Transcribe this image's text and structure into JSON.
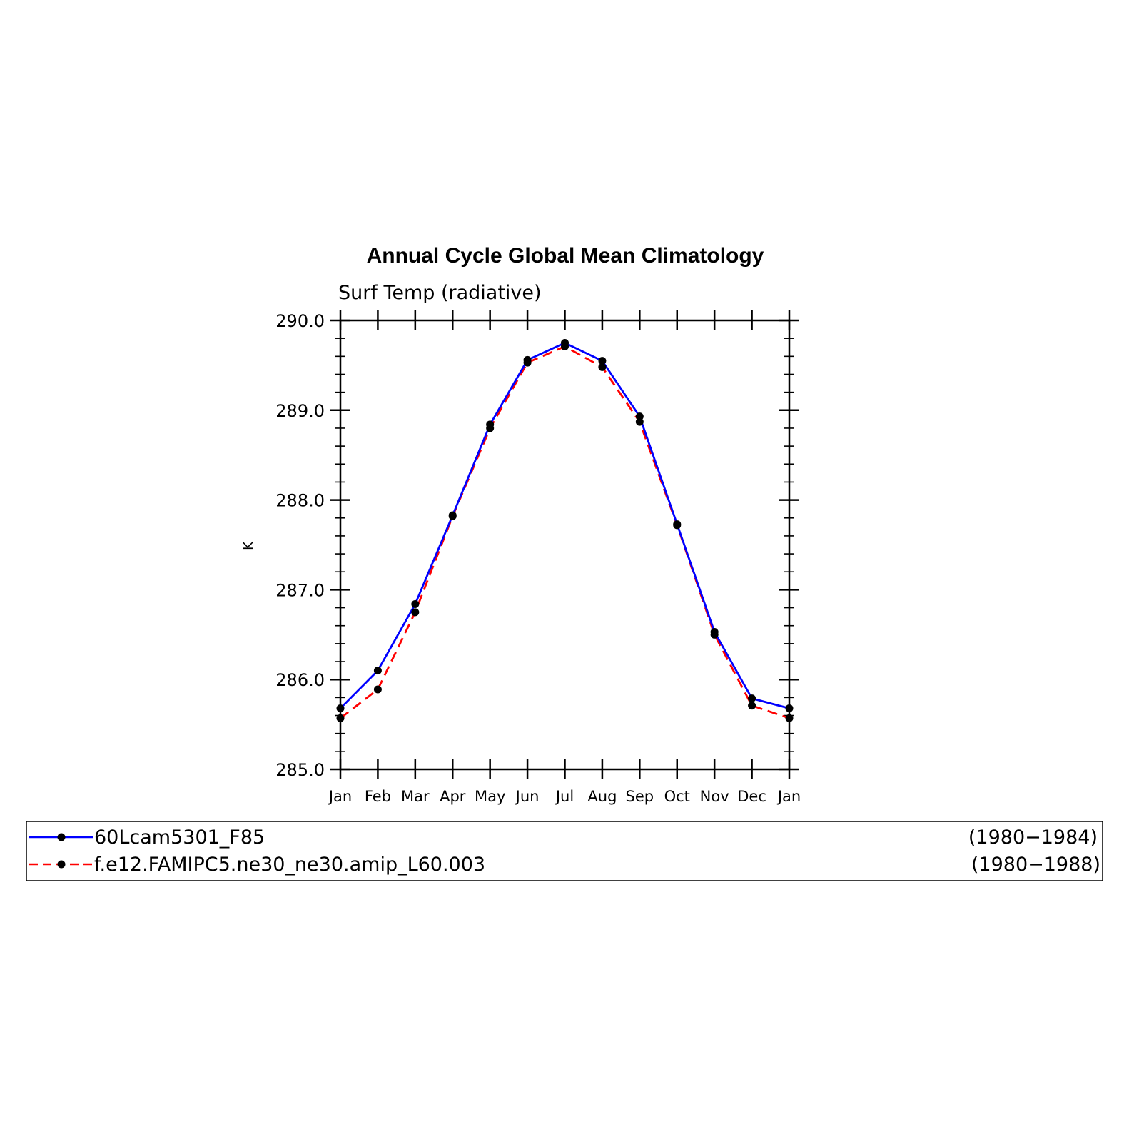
{
  "chart_data": {
    "type": "line",
    "title": "Annual Cycle Global Mean Climatology",
    "subtitle": "Surf Temp (radiative)",
    "xlabel": "",
    "ylabel": "K",
    "ylim": [
      285.0,
      290.0
    ],
    "yticks": [
      "285.0",
      "286.0",
      "287.0",
      "288.0",
      "289.0",
      "290.0"
    ],
    "categories": [
      "Jan",
      "Feb",
      "Mar",
      "Apr",
      "May",
      "Jun",
      "Jul",
      "Aug",
      "Sep",
      "Oct",
      "Nov",
      "Dec",
      "Jan"
    ],
    "grid": false,
    "legend": "bottom",
    "series": [
      {
        "name": "60Lcam5301_F85",
        "period": "(1980−1984)",
        "color": "#0000ff",
        "dash": "solid",
        "values": [
          285.68,
          286.1,
          286.84,
          287.83,
          288.84,
          289.56,
          289.75,
          289.55,
          288.93,
          287.73,
          286.53,
          285.79,
          285.68
        ]
      },
      {
        "name": "f.e12.FAMIPC5.ne30_ne30.amip_L60.003",
        "period": "(1980−1988)",
        "color": "#ff0000",
        "dash": "dashed",
        "values": [
          285.57,
          285.89,
          286.75,
          287.82,
          288.8,
          289.53,
          289.71,
          289.48,
          288.87,
          287.72,
          286.5,
          285.71,
          285.57
        ]
      }
    ]
  }
}
